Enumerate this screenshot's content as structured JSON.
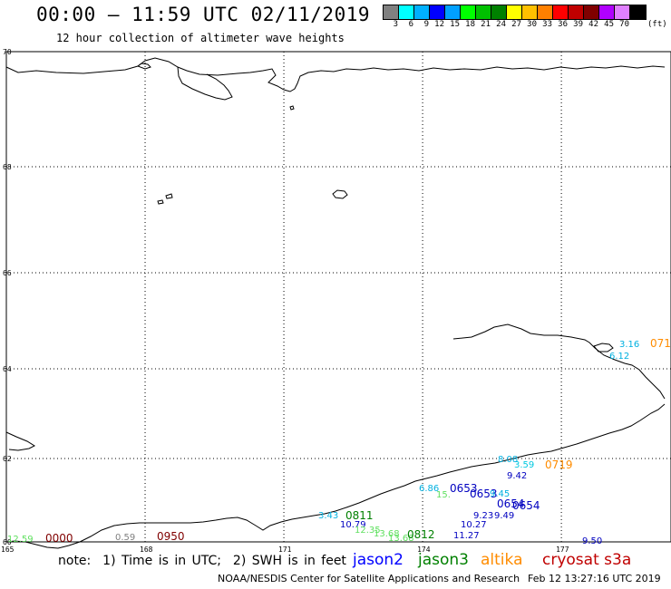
{
  "header": {
    "title": "00:00 – 11:59 UTC 02/11/2019",
    "subtitle": "12 hour collection of altimeter wave heights"
  },
  "scale": {
    "colors": [
      "#808080",
      "#00ffff",
      "#00b0ff",
      "#0000ff",
      "#00a0ff",
      "#00ff00",
      "#00c000",
      "#008000",
      "#ffff00",
      "#ffc000",
      "#ff8000",
      "#ff0000",
      "#c00000",
      "#800000",
      "#b000ff",
      "#e080ff",
      "#000000"
    ],
    "labels": [
      "3",
      "6",
      "9",
      "12",
      "15",
      "18",
      "21",
      "24",
      "27",
      "30",
      "33",
      "36",
      "39",
      "42",
      "45",
      "70"
    ],
    "unit": "(ft)"
  },
  "map": {
    "lat_labels": [
      {
        "text": "70",
        "lat": 70
      },
      {
        "text": "68",
        "lat": 68
      },
      {
        "text": "66",
        "lat": 66
      },
      {
        "text": "64",
        "lat": 64
      },
      {
        "text": "62",
        "lat": 62
      },
      {
        "text": "60",
        "lat": 60
      }
    ],
    "lon_labels": [
      {
        "text": "165",
        "lon": 165
      },
      {
        "text": "168",
        "lon": 168
      },
      {
        "text": "171",
        "lon": 171
      },
      {
        "text": "174",
        "lon": 174
      },
      {
        "text": "177",
        "lon": 177
      }
    ]
  },
  "observations": [
    {
      "text": "3.16",
      "color": "#00b0e0",
      "satellite": "altika"
    },
    {
      "text": "6.12",
      "color": "#00b0e0",
      "satellite": "altika"
    },
    {
      "text": "071",
      "color": "#ff8c00",
      "satellite": "altika"
    },
    {
      "text": "0719",
      "color": "#ff8c00",
      "satellite": "altika"
    },
    {
      "text": "3.59",
      "color": "#00c8e0",
      "satellite": "altika"
    },
    {
      "text": "9.42",
      "color": "#0000c0",
      "satellite": "jason2"
    },
    {
      "text": "8.08",
      "color": "#00b0e0",
      "satellite": "jason2"
    },
    {
      "text": "6.86",
      "color": "#00b0e0",
      "satellite": "jason2"
    },
    {
      "text": "0653",
      "color": "#0000c0",
      "satellite": "jason2"
    },
    {
      "text": "0653",
      "color": "#0000c0",
      "satellite": "jason2"
    },
    {
      "text": "9.45",
      "color": "#00b0e0",
      "satellite": "jason2"
    },
    {
      "text": "15.",
      "color": "#60e060",
      "satellite": "jason3"
    },
    {
      "text": "0654",
      "color": "#0000c0",
      "satellite": "jason2"
    },
    {
      "text": "0654",
      "color": "#0000c0",
      "satellite": "jason2"
    },
    {
      "text": "9.23",
      "color": "#0000c0",
      "satellite": "jason2"
    },
    {
      "text": "9.49",
      "color": "#0000c0",
      "satellite": "jason2"
    },
    {
      "text": "10.27",
      "color": "#0000c0",
      "satellite": "jason2"
    },
    {
      "text": "11.27",
      "color": "#0000c0",
      "satellite": "jason2"
    },
    {
      "text": "10.79",
      "color": "#0000c0",
      "satellite": "jason2"
    },
    {
      "text": "3.43",
      "color": "#00b0e0",
      "satellite": "jason3"
    },
    {
      "text": "0811",
      "color": "#008000",
      "satellite": "jason3"
    },
    {
      "text": "12.35",
      "color": "#60e060",
      "satellite": "jason3"
    },
    {
      "text": "13.68",
      "color": "#60e060",
      "satellite": "jason3"
    },
    {
      "text": "13.68",
      "color": "#60e060",
      "satellite": "jason3"
    },
    {
      "text": "0812",
      "color": "#008000",
      "satellite": "jason3"
    },
    {
      "text": "0950",
      "color": "#800000",
      "satellite": "cryosat"
    },
    {
      "text": "0.59",
      "color": "#808080",
      "satellite": "cryosat"
    },
    {
      "text": "0000",
      "color": "#800000",
      "satellite": "cryosat"
    },
    {
      "text": "12.59",
      "color": "#60e060",
      "satellite": "cryosat"
    },
    {
      "text": "9.50",
      "color": "#0000c0",
      "satellite": "jason2"
    }
  ],
  "footer": {
    "note": "note:  1) Time is in UTC;  2) SWH is in feet",
    "legend": [
      {
        "label": "jason2",
        "color": "#0000ff"
      },
      {
        "label": "jason3",
        "color": "#008000"
      },
      {
        "label": "altika",
        "color": "#ff8c00"
      },
      {
        "label": "cryosat s3a",
        "color": "#c00000"
      }
    ],
    "credit": "NOAA/NESDIS Center for Satellite Applications and Research",
    "timestamp": "Feb 12 13:27:16 UTC 2019"
  },
  "colors": {
    "grid": "#000000",
    "coast": "#000000",
    "background": "#ffffff"
  }
}
